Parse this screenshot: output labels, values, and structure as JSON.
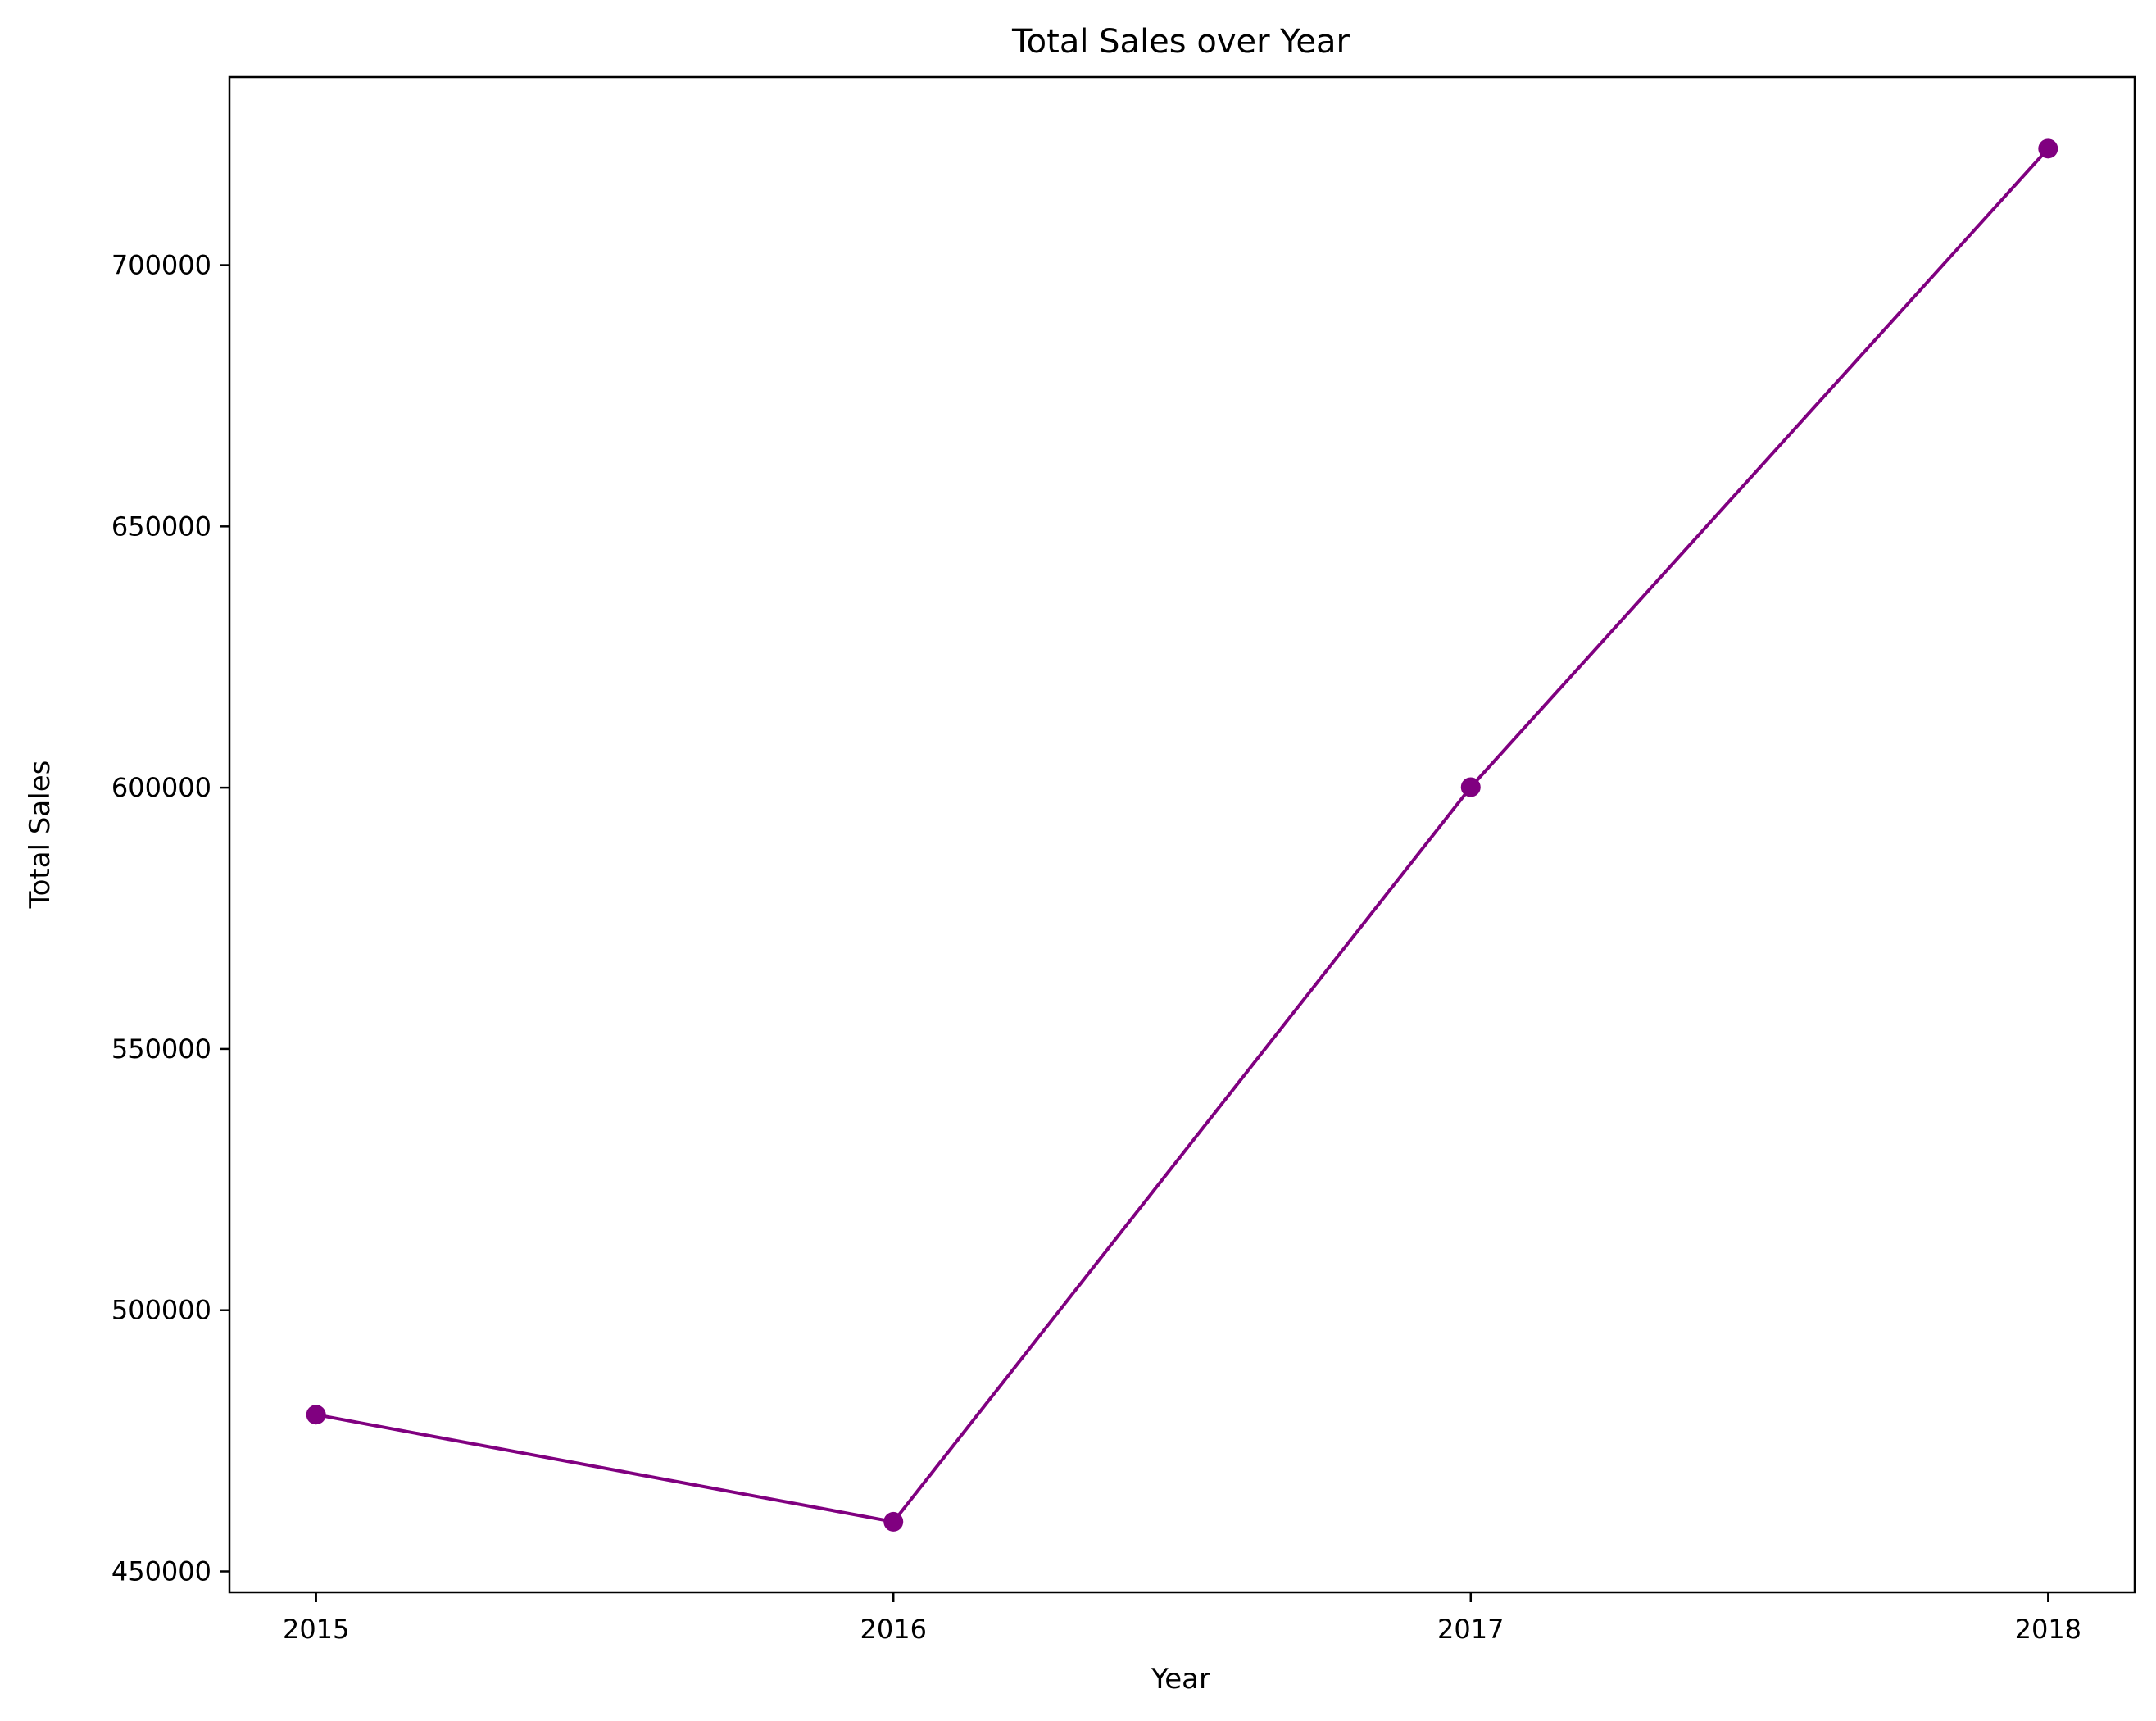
{
  "chart_data": {
    "type": "line",
    "title": "Total Sales over Year",
    "xlabel": "Year",
    "ylabel": "Total Sales",
    "x": [
      2015,
      2016,
      2017,
      2018
    ],
    "x_tick_labels": [
      "2015",
      "2016",
      "2017",
      "2018"
    ],
    "xlim": [
      2014.85,
      2018.15
    ],
    "y_ticks": [
      450000,
      500000,
      550000,
      600000,
      650000,
      700000
    ],
    "y_tick_labels": [
      "450000",
      "500000",
      "550000",
      "600000",
      "650000",
      "700000"
    ],
    "ylim": [
      446000,
      736000
    ],
    "series": [
      {
        "values": [
          480000,
          459500,
          600100,
          722300
        ],
        "color": "#800080",
        "marker": "circle"
      }
    ],
    "grid": false,
    "legend": "none"
  }
}
